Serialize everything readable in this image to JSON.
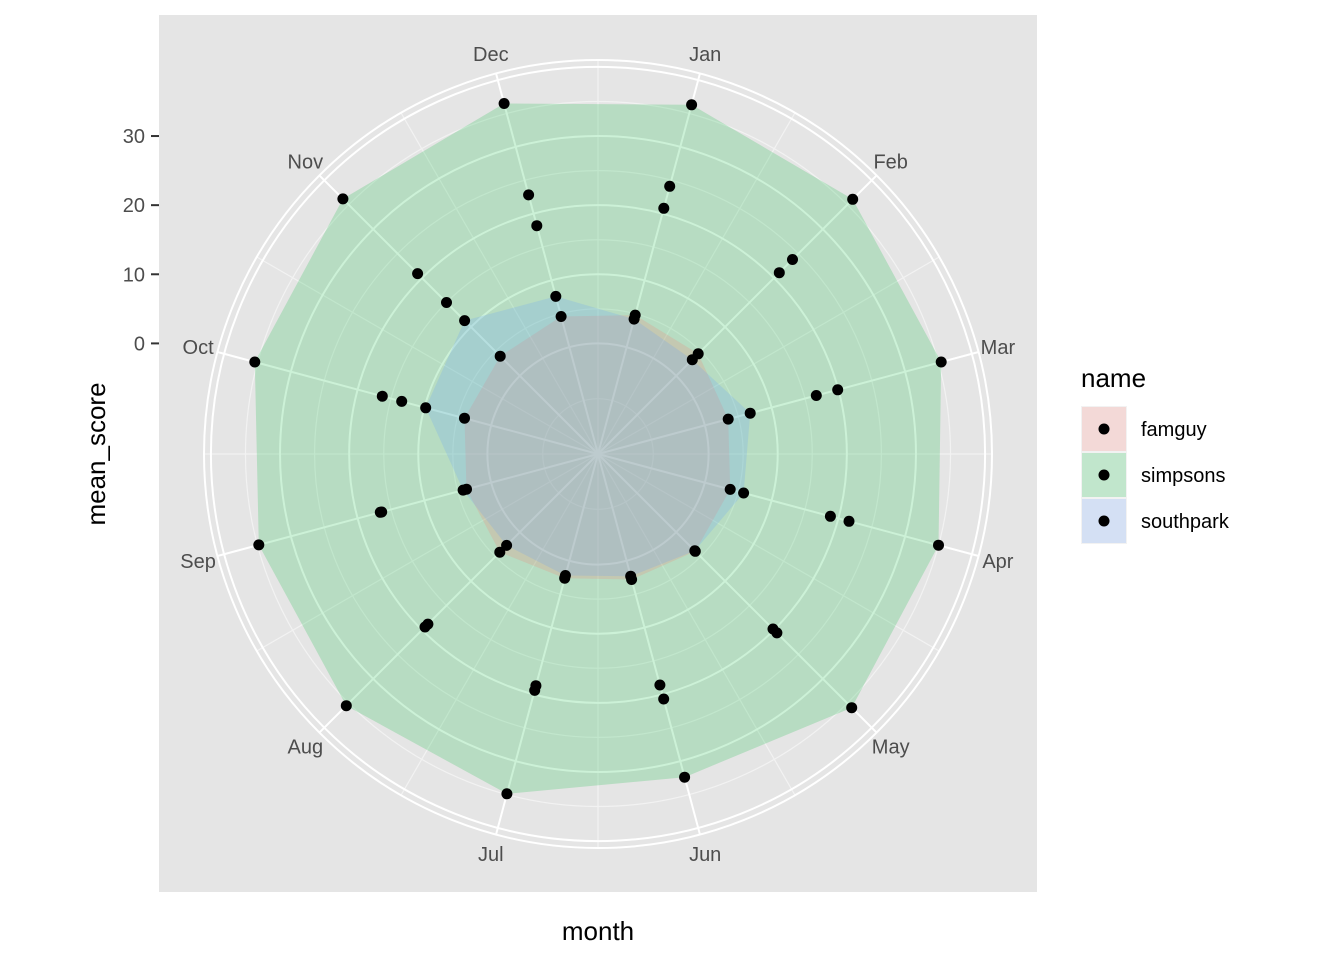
{
  "chart_data": {
    "type": "radar",
    "title": "",
    "xlabel": "month",
    "ylabel": "mean_score",
    "categories": [
      "Jan",
      "Feb",
      "Mar",
      "Apr",
      "May",
      "Jun",
      "Jul",
      "Aug",
      "Sep",
      "Oct",
      "Nov",
      "Dec"
    ],
    "y_ticks": [
      0,
      10,
      20,
      30
    ],
    "y_tick_labels": [
      "0",
      "10",
      "20",
      "30"
    ],
    "ylim": [
      -16,
      41
    ],
    "grid": true,
    "legend_position": "right",
    "legend_title": "name",
    "series": [
      {
        "name": "famguy",
        "color": "#F8766D",
        "values": [
          4.8,
          4.5,
          3.5,
          3.8,
          3.9,
          2.8,
          2.6,
          4.1,
          3.7,
          4.0,
          4.0,
          4.6
        ]
      },
      {
        "name": "simpsons",
        "color": "#00BA38",
        "values": [
          36.3,
          36.1,
          35.4,
          35.0,
          35.9,
          32.4,
          34.9,
          35.5,
          34.8,
          35.4,
          36.2,
          36.5
        ]
      },
      {
        "name": "southpark",
        "color": "#619CFF",
        "values": [
          4.2,
          3.3,
          6.8,
          5.8,
          3.8,
          2.3,
          2.2,
          2.7,
          4.2,
          9.8,
          11.3,
          7.6
        ]
      }
    ],
    "visible_point_values": [
      [
        20.8,
        21.1,
        19.9,
        21.6,
        19.8,
        18.6,
        18.7,
        18.8,
        16.6,
        13.4,
        15.0,
        18.2
      ],
      [
        24.1,
        23.8,
        16.7,
        18.8,
        20.6,
        20.7,
        19.4,
        19.4,
        16.4,
        16.3,
        20.9,
        22.8
      ]
    ]
  }
}
